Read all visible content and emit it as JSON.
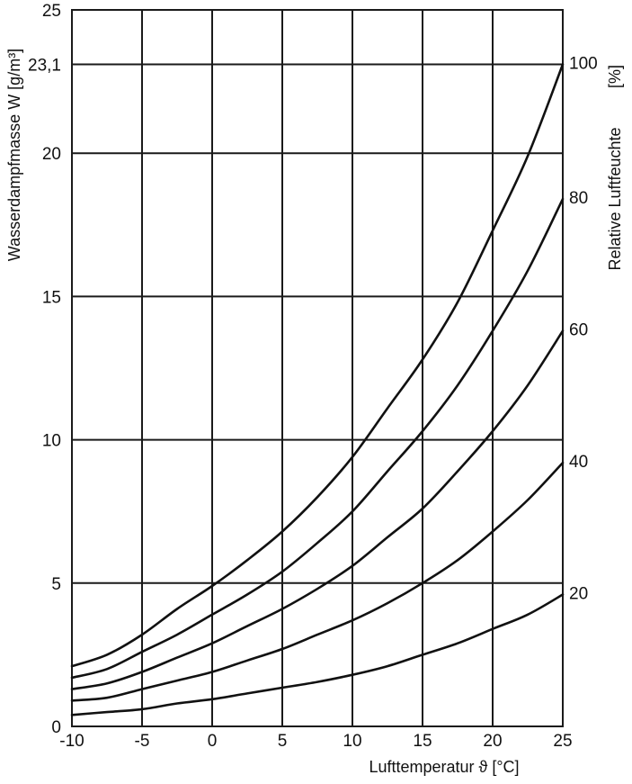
{
  "chart_data": {
    "type": "line",
    "xlabel": "Lufttemperatur ϑ [°C]",
    "ylabel": "Wasserdampfmasse W [g/m³]",
    "y2label": "Relative Luftfeuchte",
    "y2unit": "[%]",
    "xlim": [
      -10,
      25
    ],
    "ylim": [
      0,
      25
    ],
    "x_ticks": [
      "-10",
      "-5",
      "0",
      "5",
      "10",
      "15",
      "20",
      "25"
    ],
    "y_ticks": [
      {
        "value": 0,
        "label": "0"
      },
      {
        "value": 5,
        "label": "5"
      },
      {
        "value": 10,
        "label": "10"
      },
      {
        "value": 15,
        "label": "15"
      },
      {
        "value": 20,
        "label": "20"
      },
      {
        "value": 23.1,
        "label": "23,1"
      },
      {
        "value": 25,
        "label": "25"
      }
    ],
    "grid": true,
    "x": [
      -10,
      -7.5,
      -5,
      -2.5,
      0,
      2.5,
      5,
      7.5,
      10,
      12.5,
      15,
      17.5,
      20,
      22.5,
      25
    ],
    "series": [
      {
        "name": "100",
        "values": [
          2.1,
          2.5,
          3.2,
          4.1,
          4.9,
          5.8,
          6.8,
          8.0,
          9.4,
          11.1,
          12.8,
          14.8,
          17.3,
          19.9,
          23.1
        ]
      },
      {
        "name": "80",
        "values": [
          1.7,
          2.0,
          2.6,
          3.2,
          3.9,
          4.6,
          5.4,
          6.4,
          7.5,
          8.9,
          10.3,
          11.9,
          13.8,
          15.9,
          18.4
        ]
      },
      {
        "name": "60",
        "values": [
          1.3,
          1.5,
          1.9,
          2.4,
          2.9,
          3.5,
          4.1,
          4.8,
          5.6,
          6.6,
          7.6,
          8.9,
          10.3,
          11.9,
          13.8
        ]
      },
      {
        "name": "40",
        "values": [
          0.9,
          1.0,
          1.3,
          1.6,
          1.9,
          2.3,
          2.7,
          3.2,
          3.7,
          4.3,
          5.0,
          5.8,
          6.8,
          7.9,
          9.2
        ]
      },
      {
        "name": "20",
        "values": [
          0.4,
          0.5,
          0.6,
          0.8,
          0.95,
          1.15,
          1.35,
          1.55,
          1.8,
          2.1,
          2.5,
          2.9,
          3.4,
          3.9,
          4.6
        ]
      }
    ]
  }
}
